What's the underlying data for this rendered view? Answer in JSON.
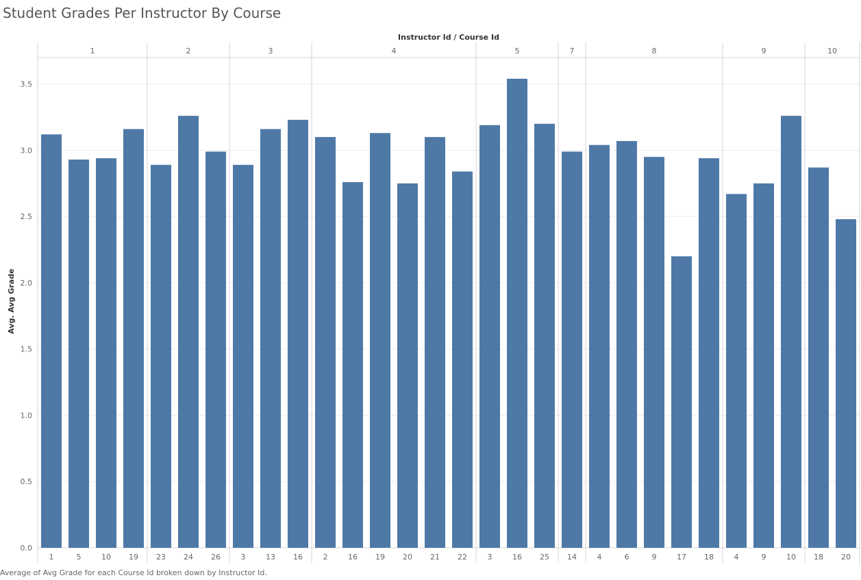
{
  "title": "Student Grades Per Instructor By Course",
  "footnote": "Average of Avg Grade for each Course Id broken down by Instructor Id.",
  "colors": {
    "bar": "#4e79a7",
    "gridline": "#ececec",
    "divider": "#d4d4d4",
    "axis_text": "#666666",
    "header_text": "#333333"
  },
  "chart_data": {
    "type": "bar",
    "title": "Student Grades Per Instructor By Course",
    "xlabel": "Instructor Id / Course Id",
    "ylabel": "Avg. Avg Grade",
    "ylim": [
      0,
      3.7
    ],
    "yticks": [
      "0.0",
      "0.5",
      "1.0",
      "1.5",
      "2.0",
      "2.5",
      "3.0",
      "3.5"
    ],
    "grid": true,
    "groups": [
      {
        "instructor": "1",
        "courses": [
          "1",
          "5",
          "10",
          "19"
        ],
        "values": [
          3.12,
          2.93,
          2.94,
          3.16
        ]
      },
      {
        "instructor": "2",
        "courses": [
          "23",
          "24",
          "26"
        ],
        "values": [
          2.89,
          3.26,
          2.99
        ]
      },
      {
        "instructor": "3",
        "courses": [
          "3",
          "13",
          "16"
        ],
        "values": [
          2.89,
          3.16,
          3.23
        ]
      },
      {
        "instructor": "4",
        "courses": [
          "2",
          "16",
          "19",
          "20",
          "21",
          "22"
        ],
        "values": [
          3.1,
          2.76,
          3.13,
          2.75,
          3.1,
          2.84
        ]
      },
      {
        "instructor": "5",
        "courses": [
          "3",
          "16",
          "25"
        ],
        "values": [
          3.19,
          3.54,
          3.2
        ]
      },
      {
        "instructor": "7",
        "courses": [
          "14"
        ],
        "values": [
          2.99
        ]
      },
      {
        "instructor": "8",
        "courses": [
          "4",
          "6",
          "9",
          "17",
          "18"
        ],
        "values": [
          3.04,
          3.07,
          2.95,
          2.2,
          2.94
        ]
      },
      {
        "instructor": "9",
        "courses": [
          "4",
          "9",
          "10"
        ],
        "values": [
          2.67,
          2.75,
          3.26
        ]
      },
      {
        "instructor": "10",
        "courses": [
          "18",
          "20"
        ],
        "values": [
          2.87,
          2.48
        ]
      }
    ]
  }
}
